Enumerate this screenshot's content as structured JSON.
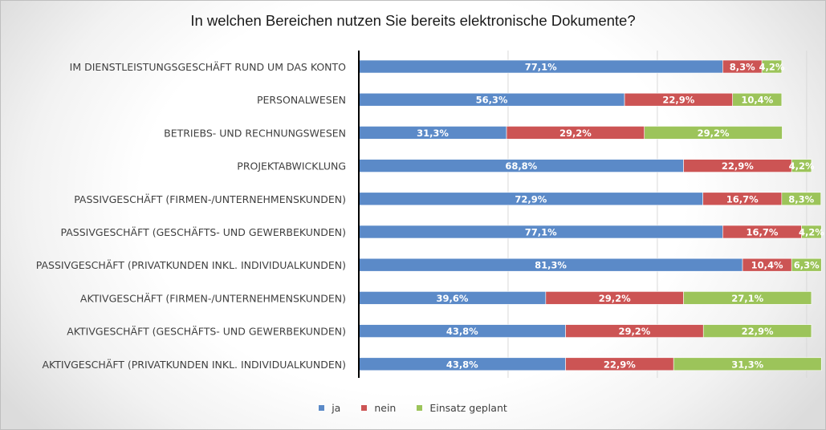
{
  "chart_data": {
    "type": "bar",
    "orientation": "horizontal",
    "stacked": true,
    "title": "In welchen Bereichen nutzen Sie bereits elektronische Dokumente?",
    "categories": [
      "IM DIENSTLEISTUNGSGESCHÄFT RUND UM DAS KONTO",
      "PERSONALWESEN",
      "BETRIEBS- UND RECHNUNGSWESEN",
      "PROJEKTABWICKLUNG",
      "PASSIVGESCHÄFT (FIRMEN-/UNTERNEHMENSKUNDEN)",
      "PASSIVGESCHÄFT (GESCHÄFTS- UND GEWERBEKUNDEN)",
      "PASSIVGESCHÄFT (PRIVATKUNDEN INKL. INDIVIDUALKUNDEN)",
      "AKTIVGESCHÄFT (FIRMEN-/UNTERNEHMENSKUNDEN)",
      "AKTIVGESCHÄFT (GESCHÄFTS- UND GEWERBEKUNDEN)",
      "AKTIVGESCHÄFT (PRIVATKUNDEN INKL. INDIVIDUALKUNDEN)"
    ],
    "series": [
      {
        "name": "ja",
        "color": "#5b8ac8",
        "values": [
          77.1,
          56.3,
          31.3,
          68.8,
          72.9,
          77.1,
          81.3,
          39.6,
          43.8,
          43.8
        ]
      },
      {
        "name": "nein",
        "color": "#cc5454",
        "values": [
          8.3,
          22.9,
          29.2,
          22.9,
          16.7,
          16.7,
          10.4,
          29.2,
          29.2,
          22.9
        ]
      },
      {
        "name": "Einsatz geplant",
        "color": "#9cc45a",
        "values": [
          4.2,
          10.4,
          29.2,
          4.2,
          8.3,
          4.2,
          6.3,
          27.1,
          22.9,
          31.3
        ]
      }
    ],
    "value_suffix": "%",
    "xlim": [
      0,
      100
    ],
    "grid": true,
    "legend_position": "bottom"
  }
}
